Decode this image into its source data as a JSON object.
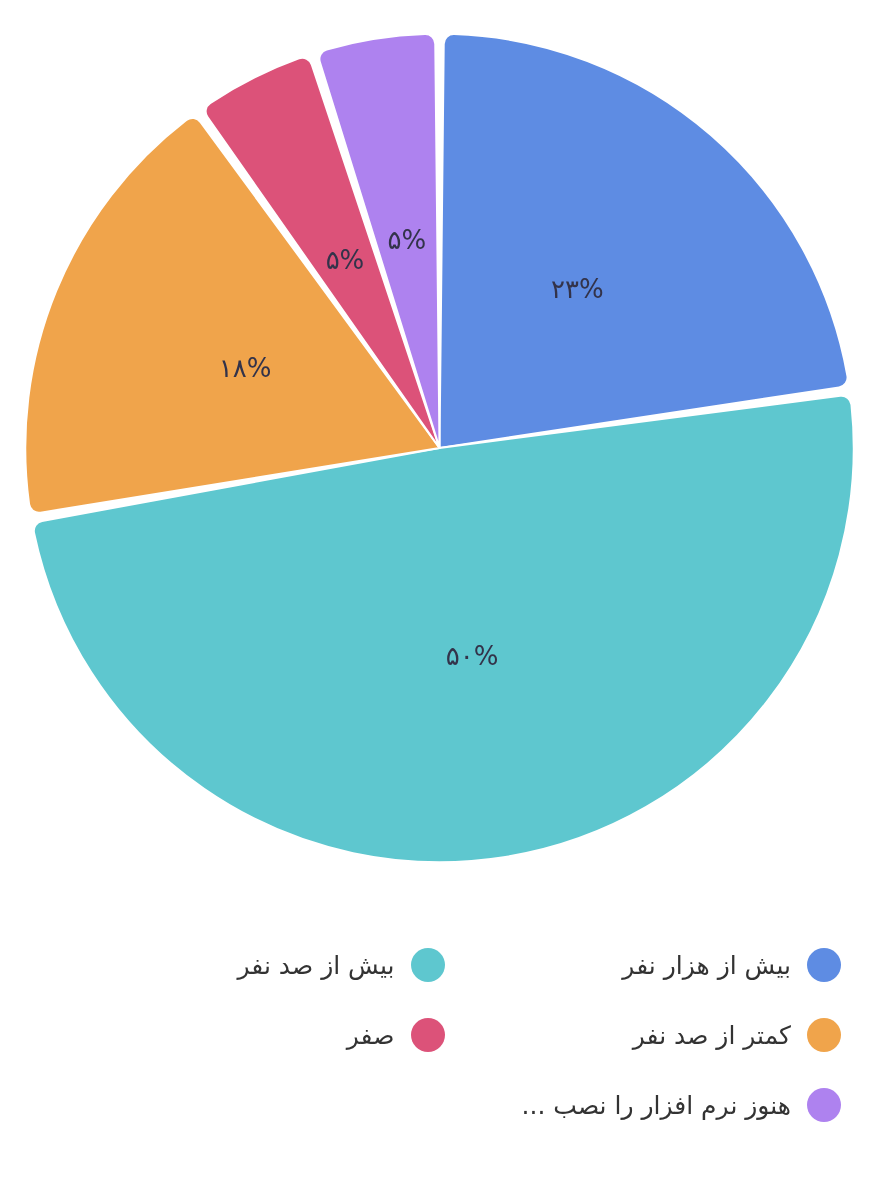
{
  "chart_data": {
    "type": "pie",
    "categories": [
      "بیش از هزار نفر",
      "بیش از صد نفر",
      "کمتر از صد نفر",
      "صفر",
      "هنوز نرم افزار را نصب ..."
    ],
    "values": [
      23,
      50,
      18,
      5,
      5
    ],
    "colors": [
      "#5e8ce3",
      "#5ec7cf",
      "#f0a44b",
      "#dc5279",
      "#ae82ef"
    ],
    "value_labels": [
      "۲۳%",
      "۵۰%",
      "۱۸%",
      "۵%",
      "۵%"
    ],
    "legend": "bottom"
  }
}
